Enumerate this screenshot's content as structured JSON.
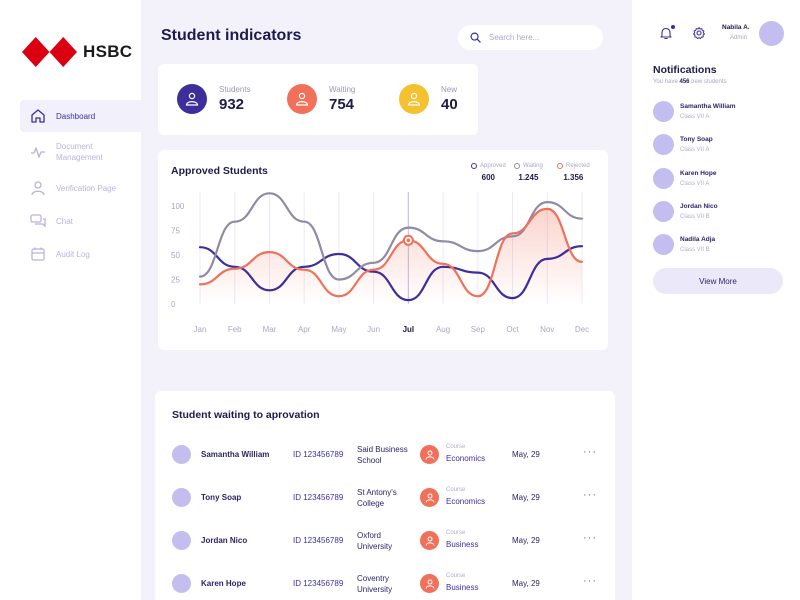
{
  "brand": {
    "name": "HSBC"
  },
  "sidebar": {
    "items": [
      {
        "label": "Dashboard",
        "icon": "home-icon",
        "active": true
      },
      {
        "label": "Document Management",
        "icon": "activity-icon",
        "active": false
      },
      {
        "label": "Verification Page",
        "icon": "user-icon",
        "active": false
      },
      {
        "label": "Chat",
        "icon": "chat-icon",
        "active": false
      },
      {
        "label": "Audit Log",
        "icon": "calendar-icon",
        "active": false
      }
    ]
  },
  "header": {
    "title": "Student indicators",
    "search_placeholder": "Search here..."
  },
  "stats": [
    {
      "label": "Students",
      "value": "932",
      "color": "#3d2e9c"
    },
    {
      "label": "Waiting",
      "value": "754",
      "color": "#f0705a"
    },
    {
      "label": "New",
      "value": "40",
      "color": "#f5c12e"
    }
  ],
  "approved_card": {
    "title": "Approved Students",
    "legend": [
      {
        "name": "Approved",
        "value": "600",
        "color": "#3d2e9c"
      },
      {
        "name": "Waiting",
        "value": "1.245",
        "color": "#8f8aa6"
      },
      {
        "name": "Rejected",
        "value": "1.356",
        "color": "#f0705a"
      }
    ]
  },
  "chart_data": {
    "type": "line",
    "title": "Approved Students",
    "categories": [
      "Jan",
      "Feb",
      "Mar",
      "Apr",
      "May",
      "Jun",
      "Jul",
      "Aug",
      "Sep",
      "Oct",
      "Nov",
      "Dec"
    ],
    "highlight_category": "Jul",
    "ylim": [
      0,
      100
    ],
    "yticks": [
      0,
      25,
      50,
      75,
      100
    ],
    "xlabel": "",
    "ylabel": "",
    "grid": "vertical",
    "series": [
      {
        "name": "Approved",
        "color": "#3d2e9c",
        "values": [
          58,
          38,
          14,
          38,
          51,
          33,
          4,
          38,
          32,
          6,
          46,
          59
        ]
      },
      {
        "name": "Waiting",
        "color": "#8f8aa6",
        "values": [
          28,
          84,
          113,
          84,
          25,
          42,
          78,
          64,
          54,
          69,
          104,
          87
        ]
      },
      {
        "name": "Rejected",
        "color": "#f0705a",
        "values": [
          20,
          36,
          53,
          35,
          8,
          35,
          65,
          41,
          8,
          72,
          97,
          43
        ]
      }
    ],
    "highlight_point": {
      "series": "Rejected",
      "category": "Jul",
      "value": 65
    }
  },
  "waiting": {
    "title": "Student waiting to aprovation",
    "course_label": "Course",
    "rows": [
      {
        "name": "Samantha William",
        "id": "ID 123456789",
        "school": "Said Business School",
        "course": "Economics",
        "date": "May, 29"
      },
      {
        "name": "Tony Soap",
        "id": "ID 123456789",
        "school": "St Antony's College",
        "course": "Economics",
        "date": "May, 29"
      },
      {
        "name": "Jordan Nico",
        "id": "ID 123456789",
        "school": "Oxford University",
        "course": "Business",
        "date": "May, 29"
      },
      {
        "name": "Karen Hope",
        "id": "ID 123456789",
        "school": "Coventry University",
        "course": "Business",
        "date": "May, 29"
      }
    ],
    "more": "···"
  },
  "user": {
    "name": "Nabila A.",
    "role": "Admin"
  },
  "notifications": {
    "title": "Notifications",
    "sub_prefix": "You have",
    "sub_count": "456",
    "sub_suffix": "new students",
    "items": [
      {
        "name": "Samantha William",
        "class": "Class VII A"
      },
      {
        "name": "Tony Soap",
        "class": "Class VII A"
      },
      {
        "name": "Karen Hope",
        "class": "Class VII A"
      },
      {
        "name": "Jordan Nico",
        "class": "Class VII B"
      },
      {
        "name": "Nadila Adja",
        "class": "Class VII B"
      }
    ],
    "view_more": "View More"
  }
}
